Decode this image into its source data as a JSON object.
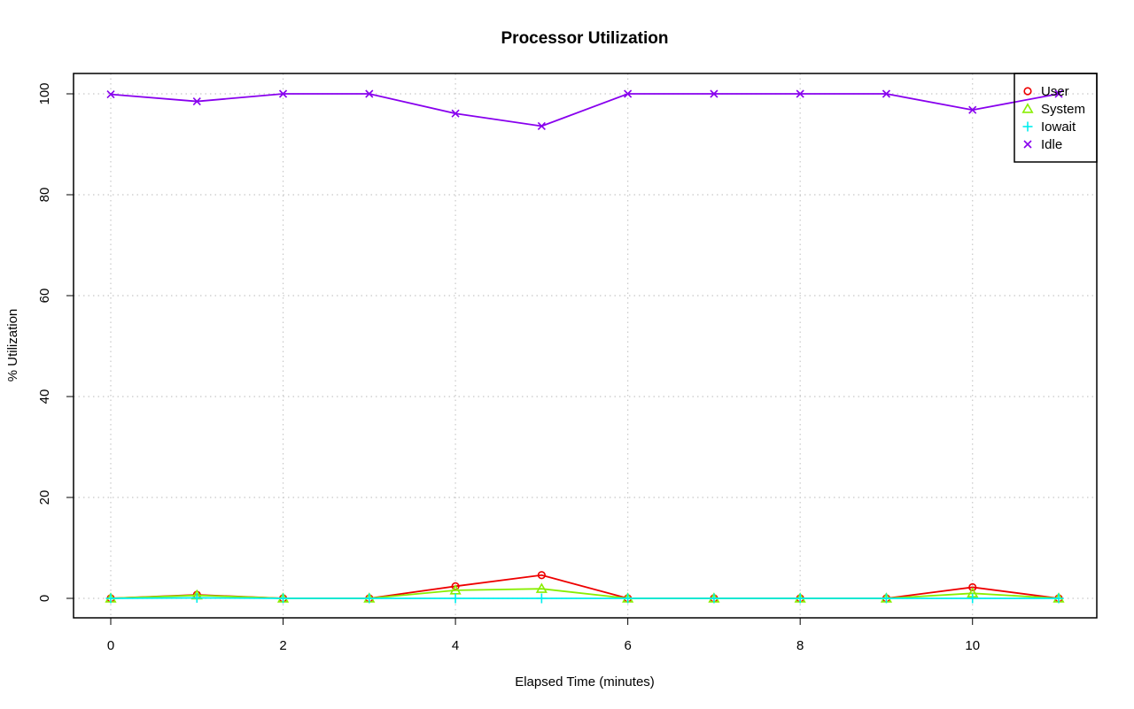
{
  "chart_data": {
    "type": "line",
    "title": "Processor Utilization",
    "xlabel": "Elapsed Time (minutes)",
    "ylabel": "% Utilization",
    "xlim": [
      0,
      11
    ],
    "ylim": [
      0,
      100
    ],
    "x_ticks": [
      0,
      2,
      4,
      6,
      8,
      10
    ],
    "y_ticks": [
      0,
      20,
      40,
      60,
      80,
      100
    ],
    "grid": true,
    "legend_position": "top-right",
    "x": [
      0,
      1,
      2,
      3,
      4,
      5,
      6,
      7,
      8,
      9,
      10,
      11
    ],
    "series": [
      {
        "name": "User",
        "color": "#ee0000",
        "marker": "circle",
        "values": [
          0,
          0.7,
          0,
          0,
          2.4,
          4.6,
          0,
          0,
          0,
          0,
          2.2,
          0
        ]
      },
      {
        "name": "System",
        "color": "#88ee00",
        "marker": "triangle",
        "values": [
          0,
          0.6,
          0,
          0,
          1.6,
          1.9,
          0,
          0,
          0,
          0,
          1.0,
          0
        ]
      },
      {
        "name": "Iowait",
        "color": "#00eeee",
        "marker": "plus",
        "values": [
          0,
          0.1,
          0,
          0,
          0,
          0,
          0,
          0,
          0,
          0,
          0,
          0
        ]
      },
      {
        "name": "Idle",
        "color": "#8800ee",
        "marker": "cross",
        "values": [
          99.9,
          98.5,
          100,
          100,
          96.1,
          93.6,
          100,
          100,
          100,
          100,
          96.8,
          100
        ]
      }
    ]
  }
}
